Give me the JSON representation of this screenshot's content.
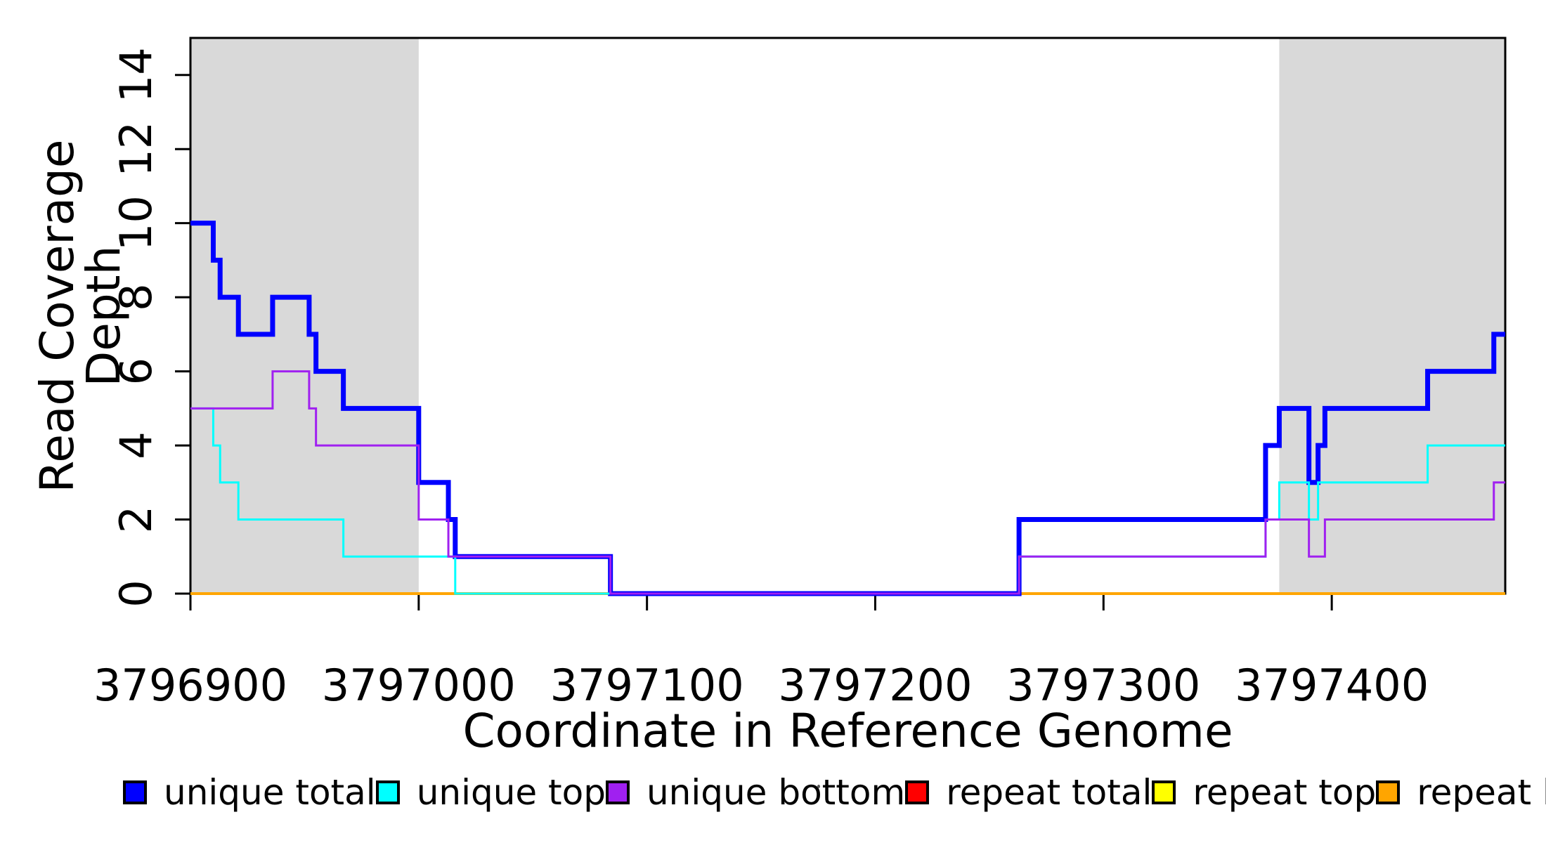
{
  "figure": {
    "background": "#FFFFFF",
    "axis_color": "#000000",
    "shade_color": "#D9D9D9"
  },
  "chart_data": {
    "type": "line",
    "subtype": "step",
    "title": "",
    "xlabel": "Coordinate in Reference Genome",
    "ylabel": "Read Coverage Depth",
    "xlim": [
      3796900,
      3797476
    ],
    "ylim": [
      0,
      15
    ],
    "grid": false,
    "x_ticks": [
      {
        "value": 3796900,
        "label": "3796900"
      },
      {
        "value": 3797000,
        "label": "3797000"
      },
      {
        "value": 3797100,
        "label": "3797100"
      },
      {
        "value": 3797200,
        "label": "3797200"
      },
      {
        "value": 3797300,
        "label": "3797300"
      },
      {
        "value": 3797400,
        "label": "3797400"
      }
    ],
    "y_ticks": [
      {
        "value": 0,
        "label": "0"
      },
      {
        "value": 2,
        "label": "2"
      },
      {
        "value": 4,
        "label": "4"
      },
      {
        "value": 6,
        "label": "6"
      },
      {
        "value": 8,
        "label": "8"
      },
      {
        "value": 10,
        "label": "10"
      },
      {
        "value": 12,
        "label": "12"
      },
      {
        "value": 14,
        "label": "14"
      }
    ],
    "shaded_regions": [
      {
        "from": 3796900,
        "to": 3797000
      },
      {
        "from": 3797377,
        "to": 3797476
      }
    ],
    "series": [
      {
        "name": "repeat total",
        "color": "#FF0000",
        "line_width": 4,
        "points": [
          [
            3796900,
            0
          ],
          [
            3797476,
            0
          ]
        ]
      },
      {
        "name": "repeat top",
        "color": "#FFFF00",
        "line_width": 4,
        "points": [
          [
            3796900,
            0
          ],
          [
            3797476,
            0
          ]
        ]
      },
      {
        "name": "repeat bottom",
        "color": "#FFA500",
        "line_width": 4,
        "points": [
          [
            3796900,
            0
          ],
          [
            3797476,
            0
          ]
        ]
      },
      {
        "name": "unique total",
        "color": "#0000FF",
        "line_width": 7,
        "points": [
          [
            3796900,
            10
          ],
          [
            3796910,
            9
          ],
          [
            3796913,
            8
          ],
          [
            3796921,
            7
          ],
          [
            3796936,
            8
          ],
          [
            3796952,
            7
          ],
          [
            3796955,
            6
          ],
          [
            3796967,
            5
          ],
          [
            3797000,
            3
          ],
          [
            3797013,
            2
          ],
          [
            3797016,
            1
          ],
          [
            3797084,
            0
          ],
          [
            3797263,
            2
          ],
          [
            3797371,
            4
          ],
          [
            3797377,
            5
          ],
          [
            3797390,
            3
          ],
          [
            3797394,
            4
          ],
          [
            3797397,
            5
          ],
          [
            3797442,
            6
          ],
          [
            3797471,
            7
          ],
          [
            3797476,
            7
          ]
        ]
      },
      {
        "name": "unique top",
        "color": "#00FFFF",
        "line_width": 3,
        "points": [
          [
            3796900,
            5
          ],
          [
            3796910,
            4
          ],
          [
            3796913,
            3
          ],
          [
            3796921,
            2
          ],
          [
            3796967,
            1
          ],
          [
            3797016,
            0
          ],
          [
            3797263,
            1
          ],
          [
            3797371,
            2
          ],
          [
            3797377,
            3
          ],
          [
            3797390,
            2
          ],
          [
            3797394,
            3
          ],
          [
            3797442,
            4
          ],
          [
            3797476,
            4
          ]
        ]
      },
      {
        "name": "unique bottom",
        "color": "#A020F0",
        "line_width": 3,
        "points": [
          [
            3796900,
            5
          ],
          [
            3796936,
            6
          ],
          [
            3796952,
            5
          ],
          [
            3796955,
            4
          ],
          [
            3797000,
            2
          ],
          [
            3797013,
            1
          ],
          [
            3797084,
            0
          ],
          [
            3797263,
            1
          ],
          [
            3797371,
            2
          ],
          [
            3797390,
            1
          ],
          [
            3797397,
            2
          ],
          [
            3797471,
            3
          ],
          [
            3797476,
            3
          ]
        ]
      }
    ],
    "legend": {
      "position": "bottom",
      "items": [
        {
          "label": "unique total",
          "color": "#0000FF"
        },
        {
          "label": "unique top",
          "color": "#00FFFF"
        },
        {
          "label": "unique bottom",
          "color": "#A020F0"
        },
        {
          "label": "repeat total",
          "color": "#FF0000"
        },
        {
          "label": "repeat top",
          "color": "#FFFF00"
        },
        {
          "label": "repeat bottom",
          "color": "#FFA500"
        }
      ]
    }
  }
}
